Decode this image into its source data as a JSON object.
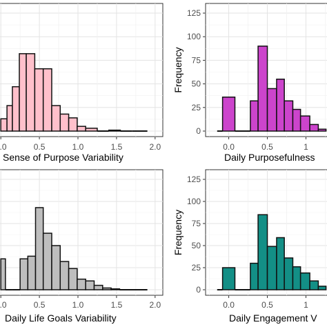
{
  "chart_data": [
    {
      "type": "bar",
      "id": "p1",
      "xlabel": "Sense of Purpose Variability",
      "ylabel": "",
      "xlim": [
        -0.1,
        2.1
      ],
      "ylim": [
        0,
        125
      ],
      "xticks": [
        0.0,
        0.5,
        1.0,
        1.5,
        2.0
      ],
      "xtick_labels": [
        "0.0",
        "0.5",
        "1.0",
        "1.5",
        "2.0"
      ],
      "yticks": [
        0,
        25,
        50,
        75,
        100,
        125
      ],
      "ytick_labels": [],
      "show_y_axis": false,
      "grid": true,
      "fill": "#ffc0cb",
      "bins": [
        {
          "x0": 0.0,
          "x1": 0.08,
          "count": 13
        },
        {
          "x0": 0.08,
          "x1": 0.15,
          "count": 27
        },
        {
          "x0": 0.15,
          "x1": 0.24,
          "count": 47
        },
        {
          "x0": 0.24,
          "x1": 0.33,
          "count": 82
        },
        {
          "x0": 0.33,
          "x1": 0.44,
          "count": 82
        },
        {
          "x0": 0.44,
          "x1": 0.55,
          "count": 66
        },
        {
          "x0": 0.55,
          "x1": 0.66,
          "count": 66
        },
        {
          "x0": 0.66,
          "x1": 0.77,
          "count": 27
        },
        {
          "x0": 0.77,
          "x1": 0.88,
          "count": 18
        },
        {
          "x0": 0.88,
          "x1": 0.99,
          "count": 14
        },
        {
          "x0": 0.99,
          "x1": 1.1,
          "count": 5
        },
        {
          "x0": 1.1,
          "x1": 1.25,
          "count": 3
        },
        {
          "x0": 1.25,
          "x1": 1.4,
          "count": 0
        },
        {
          "x0": 1.4,
          "x1": 1.55,
          "count": 1
        },
        {
          "x0": 1.55,
          "x1": 1.7,
          "count": 0
        },
        {
          "x0": 1.7,
          "x1": 1.9,
          "count": 0
        }
      ]
    },
    {
      "type": "bar",
      "id": "p2",
      "xlabel": "Daily Purposefulness",
      "ylabel": "Frequency",
      "xlim": [
        -0.3,
        1.38
      ],
      "ylim": [
        0,
        125
      ],
      "xticks": [
        0.0,
        0.5,
        1.0
      ],
      "xtick_labels": [
        "0.0",
        "0.5",
        "1"
      ],
      "yticks": [
        0,
        25,
        50,
        75,
        100,
        125
      ],
      "ytick_labels": [
        "0",
        "25",
        "50",
        "75",
        "100",
        "125"
      ],
      "show_y_axis": true,
      "grid": true,
      "fill": "#cc44cc",
      "bins": [
        {
          "x0": -0.15,
          "x1": -0.08,
          "count": 0
        },
        {
          "x0": -0.08,
          "x1": 0.08,
          "count": 36
        },
        {
          "x0": 0.08,
          "x1": 0.28,
          "count": 0
        },
        {
          "x0": 0.28,
          "x1": 0.38,
          "count": 32
        },
        {
          "x0": 0.38,
          "x1": 0.5,
          "count": 90
        },
        {
          "x0": 0.5,
          "x1": 0.62,
          "count": 45
        },
        {
          "x0": 0.62,
          "x1": 0.72,
          "count": 55
        },
        {
          "x0": 0.72,
          "x1": 0.83,
          "count": 32
        },
        {
          "x0": 0.83,
          "x1": 0.93,
          "count": 23
        },
        {
          "x0": 0.93,
          "x1": 1.05,
          "count": 16
        },
        {
          "x0": 1.05,
          "x1": 1.16,
          "count": 7
        },
        {
          "x0": 1.16,
          "x1": 1.26,
          "count": 2
        }
      ]
    },
    {
      "type": "bar",
      "id": "p3",
      "xlabel": "Daily Life Goals Variability",
      "ylabel": "",
      "xlim": [
        -0.1,
        2.1
      ],
      "ylim": [
        0,
        125
      ],
      "xticks": [
        0.0,
        0.5,
        1.0,
        1.5,
        2.0
      ],
      "xtick_labels": [
        "0.0",
        "0.5",
        "1.0",
        "1.5",
        "2.0"
      ],
      "yticks": [
        0,
        25,
        50,
        75,
        100,
        125
      ],
      "ytick_labels": [],
      "show_y_axis": false,
      "grid": true,
      "fill": "#bebebe",
      "bins": [
        {
          "x0": 0.0,
          "x1": 0.06,
          "count": 35
        },
        {
          "x0": 0.06,
          "x1": 0.15,
          "count": 0
        },
        {
          "x0": 0.15,
          "x1": 0.25,
          "count": 0
        },
        {
          "x0": 0.25,
          "x1": 0.35,
          "count": 35
        },
        {
          "x0": 0.35,
          "x1": 0.45,
          "count": 38
        },
        {
          "x0": 0.45,
          "x1": 0.55,
          "count": 93
        },
        {
          "x0": 0.55,
          "x1": 0.66,
          "count": 64
        },
        {
          "x0": 0.66,
          "x1": 0.77,
          "count": 50
        },
        {
          "x0": 0.77,
          "x1": 0.88,
          "count": 32
        },
        {
          "x0": 0.88,
          "x1": 0.99,
          "count": 24
        },
        {
          "x0": 0.99,
          "x1": 1.1,
          "count": 12
        },
        {
          "x0": 1.1,
          "x1": 1.21,
          "count": 10
        },
        {
          "x0": 1.21,
          "x1": 1.32,
          "count": 5
        },
        {
          "x0": 1.32,
          "x1": 1.43,
          "count": 2
        },
        {
          "x0": 1.43,
          "x1": 1.54,
          "count": 1
        },
        {
          "x0": 1.54,
          "x1": 1.9,
          "count": 0
        }
      ]
    },
    {
      "type": "bar",
      "id": "p4",
      "xlabel": "Daily Engagement V",
      "ylabel": "Frequency",
      "xlim": [
        -0.3,
        1.38
      ],
      "ylim": [
        0,
        125
      ],
      "xticks": [
        0.0,
        0.5,
        1.0
      ],
      "xtick_labels": [
        "0.0",
        "0.5",
        "1"
      ],
      "yticks": [
        0,
        25,
        50,
        75,
        100,
        125
      ],
      "ytick_labels": [
        "0",
        "25",
        "50",
        "75",
        "100",
        "125"
      ],
      "show_y_axis": true,
      "grid": true,
      "fill": "#138f86",
      "bins": [
        {
          "x0": -0.15,
          "x1": -0.08,
          "count": 0
        },
        {
          "x0": -0.08,
          "x1": 0.08,
          "count": 25
        },
        {
          "x0": 0.08,
          "x1": 0.28,
          "count": 0
        },
        {
          "x0": 0.28,
          "x1": 0.38,
          "count": 30
        },
        {
          "x0": 0.38,
          "x1": 0.5,
          "count": 85
        },
        {
          "x0": 0.5,
          "x1": 0.62,
          "count": 49
        },
        {
          "x0": 0.62,
          "x1": 0.72,
          "count": 59
        },
        {
          "x0": 0.72,
          "x1": 0.83,
          "count": 36
        },
        {
          "x0": 0.83,
          "x1": 0.93,
          "count": 26
        },
        {
          "x0": 0.93,
          "x1": 1.05,
          "count": 19
        },
        {
          "x0": 1.05,
          "x1": 1.16,
          "count": 10
        },
        {
          "x0": 1.16,
          "x1": 1.26,
          "count": 4
        }
      ]
    }
  ]
}
